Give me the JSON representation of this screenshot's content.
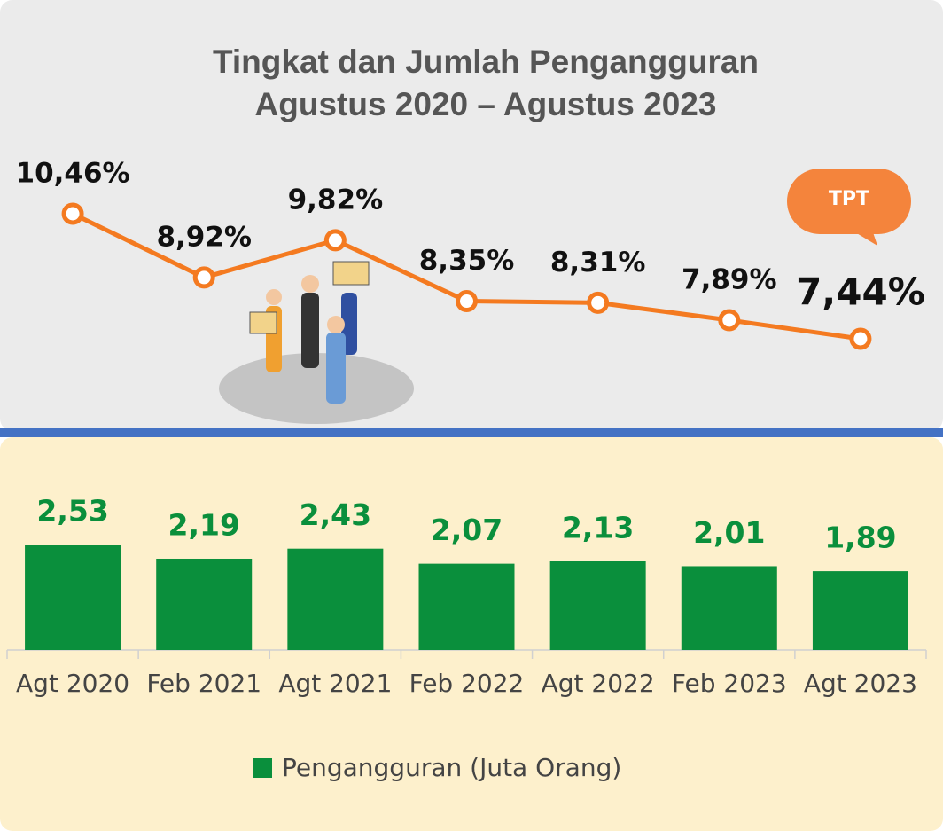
{
  "chart_data": [
    {
      "type": "line",
      "title": "Tingkat dan Jumlah Pengangguran",
      "subtitle": "Agustus 2020 – Agustus 2023",
      "series": [
        {
          "name": "TPT",
          "color": "#f47a20",
          "values": [
            10.46,
            8.92,
            9.82,
            8.35,
            8.31,
            7.89,
            7.44
          ],
          "value_labels": [
            "10,46%",
            "8,92%",
            "9,82%",
            "8,35%",
            "8,31%",
            "7,89%",
            "7,44%"
          ]
        }
      ]
    },
    {
      "type": "bar",
      "categories": [
        "Agt 2020",
        "Feb 2021",
        "Agt 2021",
        "Feb 2022",
        "Agt 2022",
        "Feb 2023",
        "Agt 2023"
      ],
      "series": [
        {
          "name": "Pengangguran (Juta Orang)",
          "color": "#0a8f3c",
          "values": [
            2.53,
            2.19,
            2.43,
            2.07,
            2.13,
            2.01,
            1.89
          ],
          "value_labels": [
            "2,53",
            "2,19",
            "2,43",
            "2,07",
            "2,13",
            "2,01",
            "1,89"
          ]
        }
      ],
      "legend": "bottom"
    }
  ]
}
